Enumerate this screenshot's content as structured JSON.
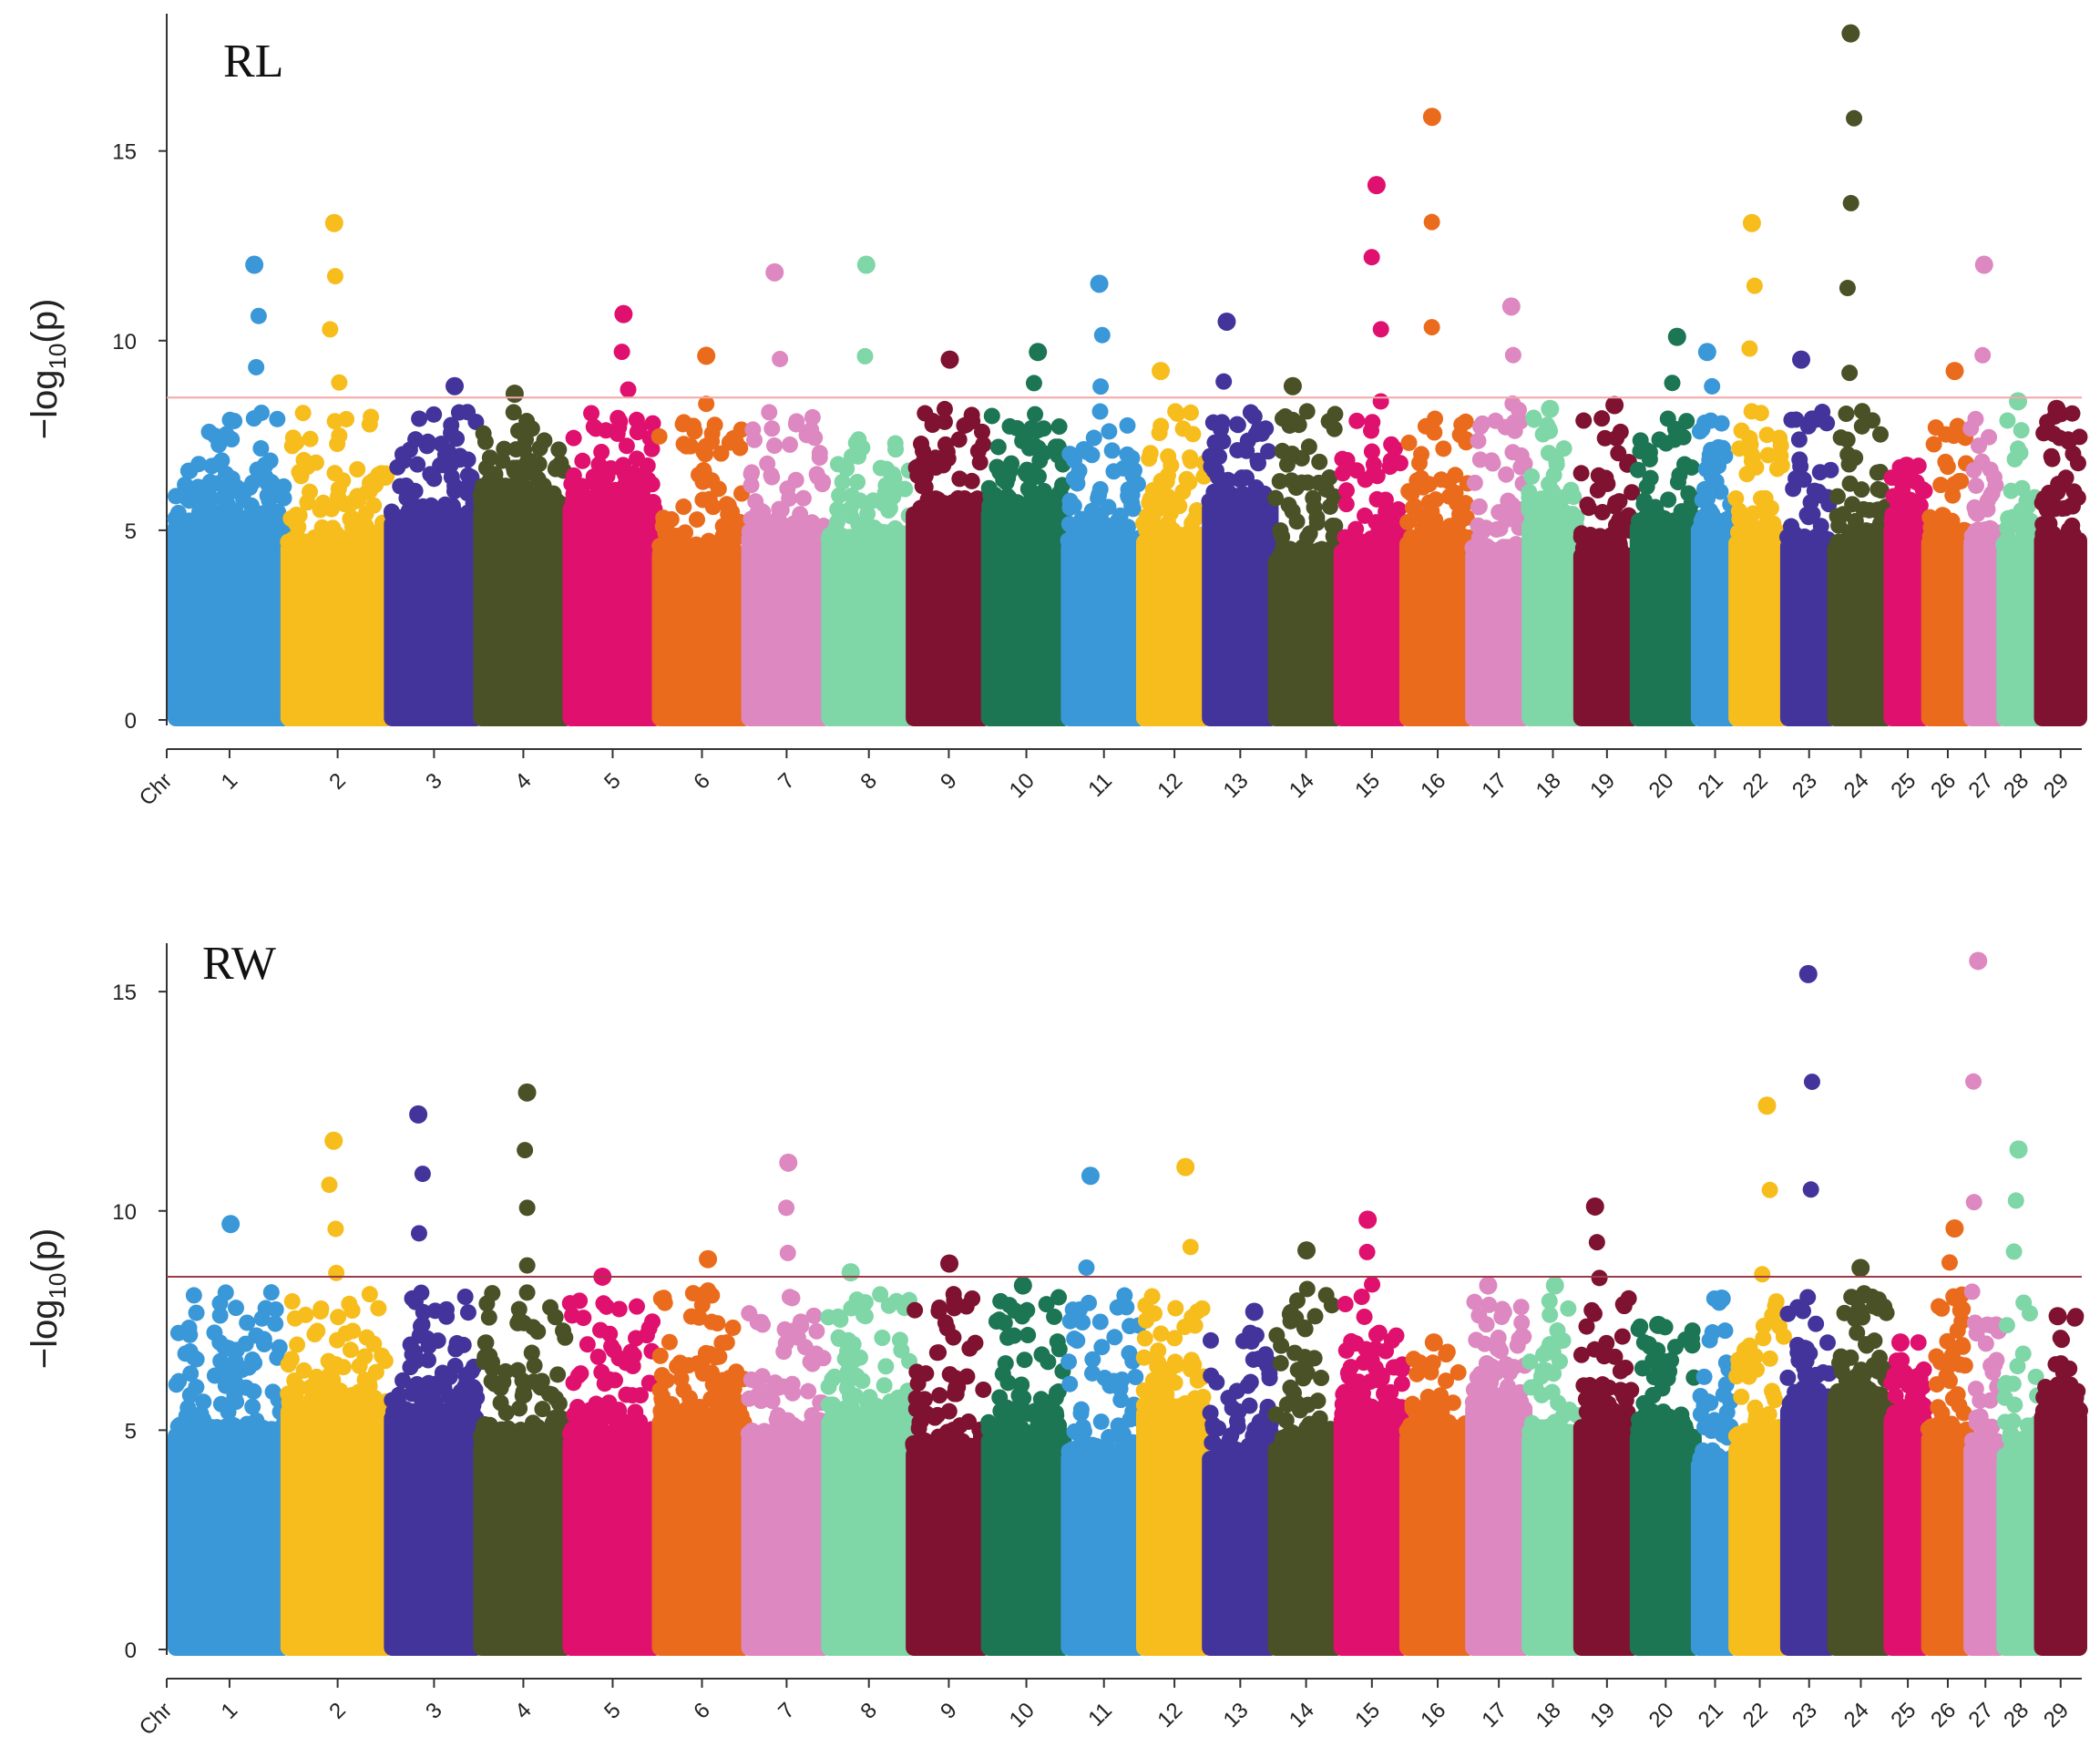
{
  "chart_data": [
    {
      "type": "scatter",
      "subtype": "manhattan",
      "title": "RL",
      "xlabel": "Chr",
      "ylabel_prefix": "−log",
      "ylabel_sub": "10",
      "ylabel_suffix": "(p)",
      "ylim": [
        0,
        18.5
      ],
      "yticks": [
        0,
        5,
        10,
        15
      ],
      "threshold": 8.5,
      "threshold_color": "#f4a6a6",
      "chromosomes": [
        "1",
        "2",
        "3",
        "4",
        "5",
        "6",
        "7",
        "8",
        "9",
        "10",
        "11",
        "12",
        "13",
        "14",
        "15",
        "16",
        "17",
        "18",
        "19",
        "20",
        "21",
        "22",
        "23",
        "24",
        "25",
        "26",
        "27",
        "28",
        "29"
      ],
      "chromosome_widths": [
        2.4,
        2.2,
        1.9,
        1.9,
        1.9,
        1.9,
        1.7,
        1.8,
        1.6,
        1.7,
        1.6,
        1.4,
        1.4,
        1.4,
        1.4,
        1.4,
        1.2,
        1.1,
        1.2,
        1.3,
        0.8,
        1.1,
        1.0,
        1.2,
        0.8,
        0.9,
        0.7,
        0.8,
        0.9
      ],
      "colors": [
        "#3a98d8",
        "#f6bd1d",
        "#43349c",
        "#4a5126",
        "#e0106e",
        "#ea6b1c",
        "#dd88c0",
        "#7fd6a7",
        "#7e1230",
        "#1c7553",
        "#3a98d8",
        "#f6bd1d",
        "#43349c",
        "#4a5126",
        "#e0106e",
        "#ea6b1c",
        "#dd88c0",
        "#7fd6a7",
        "#7e1230",
        "#1c7553",
        "#3a98d8",
        "#f6bd1d",
        "#43349c",
        "#4a5126",
        "#e0106e",
        "#ea6b1c",
        "#dd88c0",
        "#7fd6a7",
        "#7e1230"
      ],
      "chromosome_max": [
        12.0,
        13.1,
        8.8,
        8.6,
        10.7,
        9.6,
        11.8,
        12.0,
        9.5,
        9.7,
        11.5,
        9.2,
        10.5,
        8.8,
        14.1,
        15.9,
        10.9,
        8.2,
        8.3,
        10.1,
        9.7,
        13.1,
        9.5,
        18.1,
        6.7,
        9.2,
        12.0,
        8.4,
        8.2
      ]
    },
    {
      "type": "scatter",
      "subtype": "manhattan",
      "title": "RW",
      "xlabel": "Chr",
      "ylabel_prefix": "−log",
      "ylabel_sub": "10",
      "ylabel_suffix": "(p)",
      "ylim": [
        0,
        16
      ],
      "yticks": [
        0,
        5,
        10,
        15
      ],
      "threshold": 8.5,
      "threshold_color": "#9c3a4a",
      "chromosomes": [
        "1",
        "2",
        "3",
        "4",
        "5",
        "6",
        "7",
        "8",
        "9",
        "10",
        "11",
        "12",
        "13",
        "14",
        "15",
        "16",
        "17",
        "18",
        "19",
        "20",
        "21",
        "22",
        "23",
        "24",
        "25",
        "26",
        "27",
        "28",
        "29"
      ],
      "chromosome_widths": [
        2.4,
        2.2,
        1.9,
        1.9,
        1.9,
        1.9,
        1.7,
        1.8,
        1.6,
        1.7,
        1.6,
        1.4,
        1.4,
        1.4,
        1.4,
        1.4,
        1.2,
        1.1,
        1.2,
        1.3,
        0.8,
        1.1,
        1.0,
        1.2,
        0.8,
        0.9,
        0.7,
        0.8,
        0.9
      ],
      "colors": [
        "#3a98d8",
        "#f6bd1d",
        "#43349c",
        "#4a5126",
        "#e0106e",
        "#ea6b1c",
        "#dd88c0",
        "#7fd6a7",
        "#7e1230",
        "#1c7553",
        "#3a98d8",
        "#f6bd1d",
        "#43349c",
        "#4a5126",
        "#e0106e",
        "#ea6b1c",
        "#dd88c0",
        "#7fd6a7",
        "#7e1230",
        "#1c7553",
        "#3a98d8",
        "#f6bd1d",
        "#43349c",
        "#4a5126",
        "#e0106e",
        "#ea6b1c",
        "#dd88c0",
        "#7fd6a7",
        "#7e1230"
      ],
      "chromosome_max": [
        9.7,
        11.6,
        12.2,
        12.7,
        8.5,
        8.9,
        11.1,
        8.6,
        8.8,
        8.3,
        10.8,
        11.0,
        7.7,
        9.1,
        9.8,
        7.0,
        8.3,
        8.3,
        10.1,
        7.4,
        8.0,
        12.4,
        15.4,
        8.7,
        7.0,
        9.6,
        15.7,
        11.4,
        7.6
      ]
    }
  ]
}
